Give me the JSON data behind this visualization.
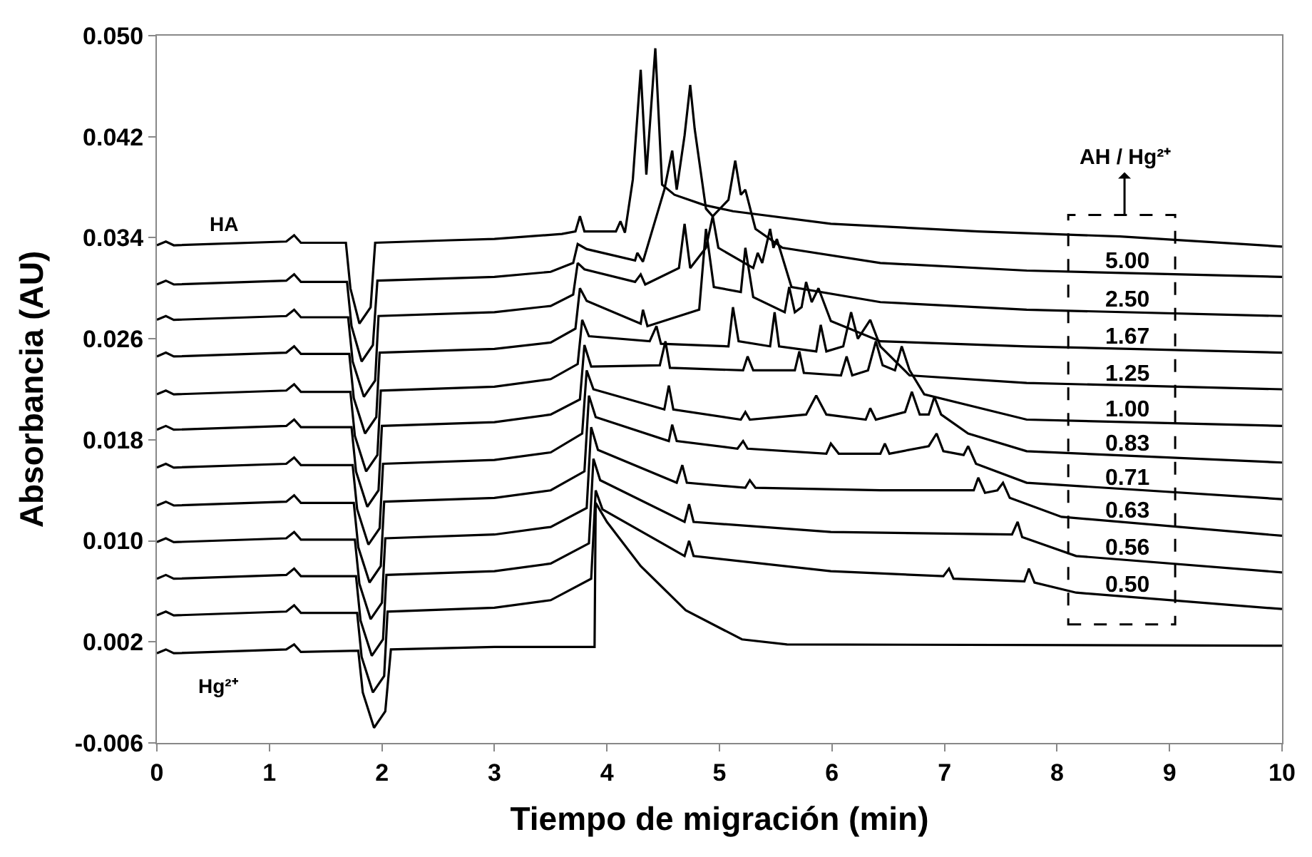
{
  "chart_data": {
    "type": "line",
    "xlabel": "Tiempo de migración (min)",
    "ylabel": "Absorbancia (AU)",
    "legend_title": "AH / Hg²⁺",
    "xlim": [
      0,
      10
    ],
    "ylim": [
      -0.006,
      0.05
    ],
    "xticks": [
      0,
      1,
      2,
      3,
      4,
      5,
      6,
      7,
      8,
      9,
      10
    ],
    "yticks": [
      {
        "value": -0.006,
        "label": "-0.006"
      },
      {
        "value": 0.002,
        "label": "0.002"
      },
      {
        "value": 0.01,
        "label": "0.010"
      },
      0.018,
      0.026,
      0.034,
      0.042,
      {
        "value": 0.05,
        "label": "0.050"
      }
    ],
    "legend": "right",
    "marker": "none",
    "line_style": "solid",
    "series": [
      {
        "name": "HA",
        "color": "#000000",
        "x": [
          0,
          0.08,
          0.15,
          1.15,
          1.22,
          1.28,
          1.68,
          1.72,
          1.8,
          1.9,
          1.94,
          2.6,
          3.0,
          3.6,
          3.72,
          3.76,
          3.8,
          4.08,
          4.12,
          4.16,
          4.23,
          4.3,
          4.35,
          4.43,
          4.49,
          4.6,
          4.86,
          5.12,
          5.99,
          7.3,
          8.56,
          10
        ],
        "values": [
          0.0334,
          0.0337,
          0.0334,
          0.0337,
          0.0342,
          0.0336,
          0.0336,
          0.03,
          0.0272,
          0.0285,
          0.0336,
          0.0338,
          0.0339,
          0.0343,
          0.0345,
          0.0357,
          0.0345,
          0.0345,
          0.0353,
          0.0344,
          0.0386,
          0.0473,
          0.039,
          0.049,
          0.0382,
          0.0374,
          0.0366,
          0.0361,
          0.0351,
          0.0345,
          0.0341,
          0.0333
        ]
      },
      {
        "name": "5.00",
        "color": "#000000",
        "x": [
          0,
          0.08,
          0.15,
          1.15,
          1.22,
          1.28,
          1.69,
          1.73,
          1.82,
          1.92,
          1.96,
          3.0,
          3.5,
          3.7,
          3.74,
          3.82,
          4.25,
          4.27,
          4.32,
          4.51,
          4.58,
          4.62,
          4.69,
          4.74,
          4.78,
          4.88,
          4.94,
          5.08,
          5.14,
          5.19,
          5.23,
          5.32,
          5.56,
          6.43,
          7.73,
          10
        ],
        "values": [
          0.0303,
          0.0306,
          0.0303,
          0.0306,
          0.0311,
          0.0305,
          0.0305,
          0.027,
          0.0242,
          0.0255,
          0.0306,
          0.0309,
          0.0313,
          0.032,
          0.0335,
          0.0331,
          0.0322,
          0.0328,
          0.0321,
          0.0378,
          0.0409,
          0.0378,
          0.0421,
          0.0461,
          0.0426,
          0.0363,
          0.0357,
          0.037,
          0.0401,
          0.0374,
          0.0378,
          0.0347,
          0.0332,
          0.032,
          0.0314,
          0.0309
        ]
      },
      {
        "name": "2.50",
        "color": "#000000",
        "x": [
          0,
          0.08,
          0.15,
          1.15,
          1.22,
          1.28,
          1.7,
          1.74,
          1.84,
          1.94,
          1.97,
          3.0,
          3.5,
          3.7,
          3.74,
          3.8,
          4.25,
          4.3,
          4.34,
          4.64,
          4.69,
          4.74,
          4.88,
          4.94,
          4.99,
          5.3,
          5.34,
          5.38,
          5.45,
          5.48,
          5.51,
          5.64,
          6.43,
          7.73,
          10
        ],
        "values": [
          0.0275,
          0.0278,
          0.0275,
          0.0278,
          0.0283,
          0.0277,
          0.0277,
          0.0242,
          0.0214,
          0.0227,
          0.0278,
          0.0281,
          0.0286,
          0.0295,
          0.032,
          0.0315,
          0.0305,
          0.0311,
          0.0303,
          0.0316,
          0.0351,
          0.0316,
          0.0332,
          0.0357,
          0.0332,
          0.0316,
          0.0328,
          0.032,
          0.0347,
          0.0332,
          0.0339,
          0.0301,
          0.0289,
          0.0283,
          0.0278
        ]
      },
      {
        "name": "1.67",
        "color": "#000000",
        "x": [
          0,
          0.08,
          0.15,
          1.15,
          1.22,
          1.28,
          1.71,
          1.75,
          1.85,
          1.95,
          1.98,
          3.0,
          3.5,
          3.72,
          3.76,
          3.82,
          4.3,
          4.32,
          4.36,
          4.82,
          4.88,
          4.95,
          5.19,
          5.23,
          5.3,
          5.58,
          5.62,
          5.67,
          5.73,
          5.77,
          5.82,
          5.88,
          5.99,
          6.43,
          7.73,
          10
        ],
        "values": [
          0.0246,
          0.0249,
          0.0246,
          0.0249,
          0.0254,
          0.0248,
          0.0248,
          0.0213,
          0.0185,
          0.0198,
          0.0249,
          0.0252,
          0.0257,
          0.0268,
          0.03,
          0.029,
          0.0272,
          0.0283,
          0.027,
          0.0283,
          0.0347,
          0.0301,
          0.0297,
          0.0332,
          0.0293,
          0.0281,
          0.0301,
          0.0281,
          0.0285,
          0.0305,
          0.0289,
          0.03,
          0.0274,
          0.0258,
          0.0254,
          0.0249
        ]
      },
      {
        "name": "1.25",
        "color": "#000000",
        "x": [
          0,
          0.08,
          0.15,
          1.15,
          1.22,
          1.28,
          1.72,
          1.76,
          1.86,
          1.96,
          1.99,
          3.0,
          3.5,
          3.74,
          3.78,
          3.84,
          4.38,
          4.44,
          4.48,
          5.08,
          5.12,
          5.17,
          5.45,
          5.49,
          5.53,
          5.86,
          5.9,
          5.95,
          6.1,
          6.17,
          6.23,
          6.34,
          6.43,
          6.69,
          7.73,
          10
        ],
        "values": [
          0.0216,
          0.0219,
          0.0216,
          0.0219,
          0.0224,
          0.0218,
          0.0218,
          0.0183,
          0.0155,
          0.0168,
          0.0219,
          0.0222,
          0.0228,
          0.024,
          0.0275,
          0.0262,
          0.0258,
          0.027,
          0.0256,
          0.0254,
          0.0285,
          0.0258,
          0.0254,
          0.0281,
          0.0254,
          0.025,
          0.0271,
          0.025,
          0.0254,
          0.0281,
          0.026,
          0.0275,
          0.0254,
          0.0231,
          0.0225,
          0.022
        ]
      },
      {
        "name": "1.00",
        "color": "#000000",
        "x": [
          0,
          0.08,
          0.15,
          1.15,
          1.22,
          1.28,
          1.73,
          1.77,
          1.87,
          1.97,
          2.0,
          3.0,
          3.5,
          3.76,
          3.8,
          3.86,
          4.47,
          4.52,
          4.56,
          5.21,
          5.25,
          5.3,
          5.67,
          5.71,
          5.75,
          6.08,
          6.13,
          6.18,
          6.32,
          6.39,
          6.45,
          6.56,
          6.62,
          6.69,
          6.82,
          7.73,
          10
        ],
        "values": [
          0.0188,
          0.0191,
          0.0188,
          0.0191,
          0.0196,
          0.019,
          0.019,
          0.0155,
          0.0127,
          0.014,
          0.0191,
          0.0194,
          0.02,
          0.0212,
          0.0255,
          0.0238,
          0.0239,
          0.0258,
          0.0237,
          0.0235,
          0.0246,
          0.0235,
          0.0235,
          0.025,
          0.0233,
          0.0231,
          0.0246,
          0.0231,
          0.0235,
          0.0258,
          0.0239,
          0.0235,
          0.0254,
          0.0235,
          0.0216,
          0.0196,
          0.0191
        ]
      },
      {
        "name": "0.83",
        "color": "#000000",
        "x": [
          0,
          0.08,
          0.15,
          1.15,
          1.22,
          1.28,
          1.74,
          1.78,
          1.88,
          1.98,
          2.01,
          3.0,
          3.5,
          3.78,
          3.82,
          3.88,
          4.51,
          4.55,
          4.59,
          5.19,
          5.23,
          5.27,
          5.77,
          5.86,
          5.95,
          6.3,
          6.34,
          6.39,
          6.65,
          6.71,
          6.78,
          6.86,
          6.91,
          6.97,
          7.21,
          7.73,
          10
        ],
        "values": [
          0.0158,
          0.0161,
          0.0158,
          0.0161,
          0.0166,
          0.016,
          0.016,
          0.0125,
          0.0097,
          0.011,
          0.0161,
          0.0164,
          0.017,
          0.0185,
          0.0235,
          0.022,
          0.0204,
          0.0223,
          0.0204,
          0.0196,
          0.0202,
          0.0196,
          0.02,
          0.0215,
          0.02,
          0.0196,
          0.0205,
          0.0196,
          0.0202,
          0.0218,
          0.02,
          0.02,
          0.0214,
          0.02,
          0.0185,
          0.0171,
          0.0162
        ]
      },
      {
        "name": "0.71",
        "color": "#000000",
        "x": [
          0,
          0.08,
          0.15,
          1.15,
          1.22,
          1.28,
          1.75,
          1.79,
          1.89,
          1.99,
          2.02,
          3.0,
          3.5,
          3.8,
          3.84,
          3.9,
          4.55,
          4.58,
          4.62,
          5.16,
          5.21,
          5.25,
          5.95,
          5.99,
          6.06,
          6.43,
          6.47,
          6.51,
          6.86,
          6.93,
          6.99,
          7.17,
          7.21,
          7.28,
          7.73,
          10
        ],
        "values": [
          0.0128,
          0.0131,
          0.0128,
          0.0131,
          0.0136,
          0.013,
          0.013,
          0.0095,
          0.0067,
          0.008,
          0.0131,
          0.0134,
          0.014,
          0.0155,
          0.0215,
          0.0198,
          0.0179,
          0.0192,
          0.0179,
          0.0173,
          0.0179,
          0.0173,
          0.0169,
          0.0177,
          0.0169,
          0.0169,
          0.0177,
          0.0169,
          0.0175,
          0.0185,
          0.0171,
          0.0168,
          0.0175,
          0.0161,
          0.0146,
          0.0133
        ]
      },
      {
        "name": "0.63",
        "color": "#000000",
        "x": [
          0,
          0.08,
          0.15,
          1.15,
          1.22,
          1.28,
          1.76,
          1.8,
          1.9,
          2.0,
          2.03,
          3.0,
          3.5,
          3.82,
          3.86,
          3.92,
          4.62,
          4.67,
          4.71,
          5.23,
          5.27,
          5.32,
          6.43,
          7.26,
          7.3,
          7.36,
          7.47,
          7.52,
          7.58,
          8.04,
          10
        ],
        "values": [
          0.0099,
          0.0102,
          0.0099,
          0.0102,
          0.0107,
          0.0101,
          0.0101,
          0.0066,
          0.0038,
          0.0051,
          0.0102,
          0.0105,
          0.0111,
          0.0126,
          0.019,
          0.0172,
          0.0146,
          0.016,
          0.0146,
          0.0142,
          0.0148,
          0.0142,
          0.014,
          0.014,
          0.015,
          0.0138,
          0.014,
          0.0146,
          0.0134,
          0.0119,
          0.0104
        ]
      },
      {
        "name": "0.56",
        "color": "#000000",
        "x": [
          0,
          0.08,
          0.15,
          1.15,
          1.22,
          1.28,
          1.77,
          1.81,
          1.91,
          2.01,
          2.04,
          3.0,
          3.5,
          3.84,
          3.88,
          3.94,
          4.69,
          4.73,
          4.77,
          5.99,
          7.6,
          7.65,
          7.69,
          8.17,
          10
        ],
        "values": [
          0.007,
          0.0073,
          0.007,
          0.0073,
          0.0078,
          0.0072,
          0.0072,
          0.0037,
          0.0009,
          0.0022,
          0.0073,
          0.0076,
          0.0082,
          0.0098,
          0.0165,
          0.0148,
          0.0115,
          0.0129,
          0.0115,
          0.0107,
          0.0105,
          0.0115,
          0.0103,
          0.0088,
          0.0075
        ]
      },
      {
        "name": "0.50",
        "color": "#000000",
        "x": [
          0,
          0.08,
          0.15,
          1.15,
          1.22,
          1.28,
          1.78,
          1.82,
          1.92,
          2.02,
          2.05,
          3.0,
          3.5,
          3.86,
          3.9,
          3.96,
          4.69,
          4.73,
          4.77,
          5.99,
          6.99,
          7.04,
          7.08,
          7.71,
          7.75,
          7.8,
          8.17,
          10
        ],
        "values": [
          0.0041,
          0.0044,
          0.0041,
          0.0044,
          0.0049,
          0.0043,
          0.0043,
          0.0008,
          -0.002,
          -0.0007,
          0.0044,
          0.0047,
          0.0053,
          0.007,
          0.014,
          0.0125,
          0.0088,
          0.01,
          0.0088,
          0.0076,
          0.0072,
          0.0078,
          0.007,
          0.0068,
          0.0078,
          0.0067,
          0.0059,
          0.0046
        ]
      },
      {
        "name": "Hg²⁺",
        "color": "#000000",
        "x": [
          0,
          0.08,
          0.15,
          1.15,
          1.22,
          1.28,
          1.79,
          1.83,
          1.93,
          2.03,
          2.08,
          3.0,
          3.5,
          3.89,
          3.9,
          4.0,
          4.3,
          4.7,
          5.2,
          5.6,
          10
        ],
        "values": [
          0.0011,
          0.0014,
          0.0011,
          0.0014,
          0.0018,
          0.0012,
          0.0013,
          -0.002,
          -0.0048,
          -0.0035,
          0.0014,
          0.0016,
          0.0016,
          0.0016,
          0.013,
          0.0115,
          0.008,
          0.0045,
          0.0022,
          0.0018,
          0.0017
        ]
      }
    ]
  }
}
